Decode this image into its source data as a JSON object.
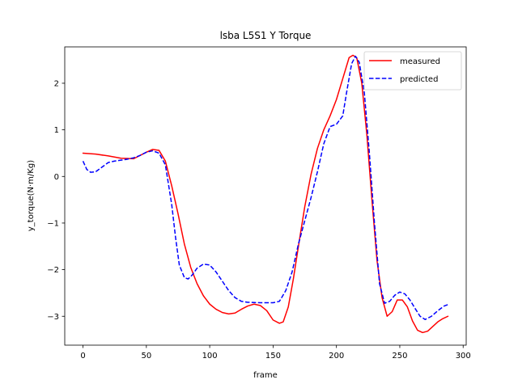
{
  "chart_data": {
    "type": "line",
    "title": "lsba L5S1 Y Torque",
    "xlabel": "frame",
    "ylabel": "y_torque(N·m/Kg)",
    "xlim": [
      -14.4,
      302.4
    ],
    "ylim": [
      -3.62,
      2.78
    ],
    "xticks": [
      0,
      50,
      100,
      150,
      200,
      250,
      300
    ],
    "yticks": [
      -3,
      -2,
      -1,
      0,
      1,
      2
    ],
    "legend": "top-right",
    "grid": false,
    "series": [
      {
        "name": "measured",
        "color": "#ff0000",
        "style": "solid",
        "x": [
          0,
          10,
          20,
          30,
          40,
          50,
          55,
          60,
          65,
          70,
          75,
          80,
          85,
          90,
          95,
          100,
          105,
          110,
          115,
          120,
          125,
          130,
          135,
          140,
          145,
          150,
          155,
          158,
          162,
          166,
          170,
          175,
          180,
          185,
          190,
          195,
          200,
          205,
          210,
          213,
          216,
          220,
          224,
          228,
          232,
          236,
          240,
          244,
          248,
          252,
          256,
          260,
          264,
          268,
          272,
          276,
          280,
          284,
          288
        ],
        "values": [
          0.5,
          0.48,
          0.44,
          0.39,
          0.38,
          0.52,
          0.58,
          0.56,
          0.33,
          -0.2,
          -0.8,
          -1.45,
          -1.95,
          -2.3,
          -2.56,
          -2.74,
          -2.85,
          -2.92,
          -2.95,
          -2.93,
          -2.85,
          -2.78,
          -2.74,
          -2.77,
          -2.88,
          -3.08,
          -3.15,
          -3.12,
          -2.8,
          -2.2,
          -1.5,
          -0.65,
          0.05,
          0.6,
          1.0,
          1.3,
          1.65,
          2.1,
          2.55,
          2.6,
          2.55,
          2.0,
          0.9,
          -0.5,
          -1.8,
          -2.6,
          -3.0,
          -2.9,
          -2.65,
          -2.65,
          -2.8,
          -3.1,
          -3.3,
          -3.35,
          -3.32,
          -3.22,
          -3.12,
          -3.05,
          -3.0
        ]
      },
      {
        "name": "predicted",
        "color": "#0000ff",
        "style": "dashed",
        "x": [
          0,
          3,
          6,
          10,
          15,
          20,
          25,
          30,
          35,
          40,
          45,
          50,
          55,
          60,
          65,
          70,
          73,
          76,
          80,
          83,
          86,
          90,
          95,
          100,
          105,
          110,
          115,
          120,
          125,
          130,
          140,
          150,
          155,
          160,
          165,
          170,
          175,
          180,
          185,
          190,
          195,
          200,
          205,
          208,
          212,
          215,
          218,
          222,
          226,
          230,
          234,
          238,
          242,
          246,
          250,
          254,
          258,
          262,
          266,
          270,
          275,
          280,
          285,
          288
        ],
        "values": [
          0.33,
          0.15,
          0.09,
          0.1,
          0.2,
          0.3,
          0.33,
          0.35,
          0.37,
          0.4,
          0.45,
          0.52,
          0.55,
          0.5,
          0.25,
          -0.6,
          -1.3,
          -1.9,
          -2.17,
          -2.2,
          -2.12,
          -1.97,
          -1.88,
          -1.9,
          -2.05,
          -2.25,
          -2.45,
          -2.6,
          -2.68,
          -2.7,
          -2.71,
          -2.71,
          -2.68,
          -2.45,
          -2.05,
          -1.45,
          -0.95,
          -0.45,
          0.1,
          0.7,
          1.07,
          1.12,
          1.3,
          1.8,
          2.42,
          2.58,
          2.45,
          1.8,
          0.5,
          -1.0,
          -2.3,
          -2.72,
          -2.68,
          -2.55,
          -2.48,
          -2.52,
          -2.65,
          -2.83,
          -3.0,
          -3.07,
          -3.0,
          -2.88,
          -2.78,
          -2.75
        ]
      }
    ]
  }
}
